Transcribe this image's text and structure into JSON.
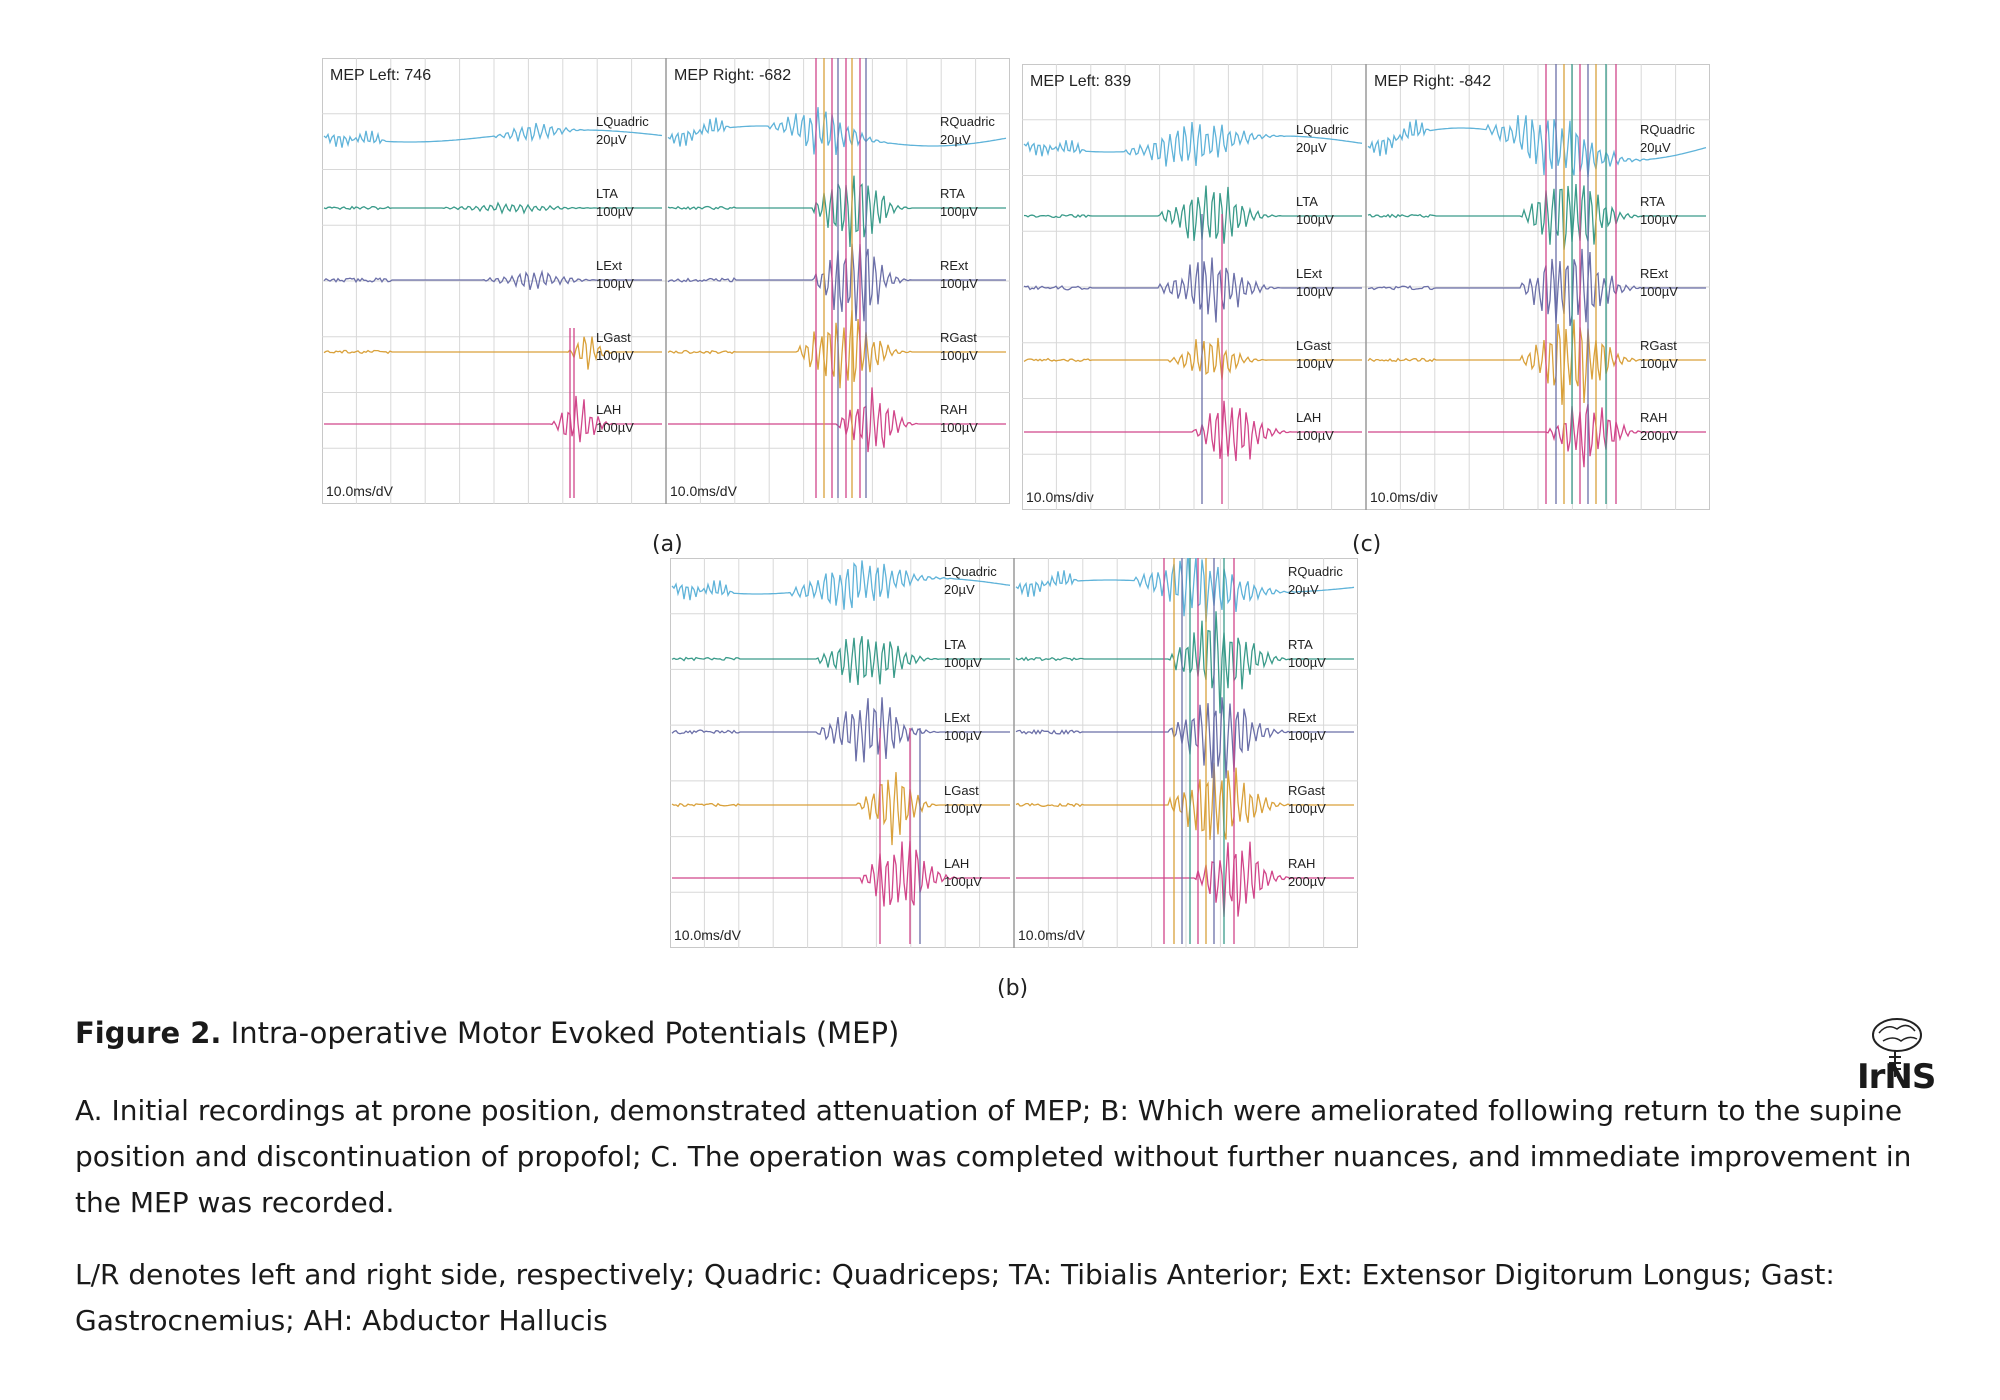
{
  "colors": {
    "grid": "#d8d8d8",
    "divider": "#9a9a9a",
    "quadric": "#5fb3d9",
    "ta": "#3a9b8a",
    "ext": "#6b6fa8",
    "gast": "#d9a13b",
    "ah": "#d1468a"
  },
  "figure": {
    "title_bold": "Figure 2.",
    "title_text": " Intra-operative Motor Evoked Potentials (MEP)",
    "caption_1": "A. Initial recordings at prone position, demonstrated attenuation of MEP; B: Which were ameliorated following return to the supine position and discontinuation of propofol; C. The operation was completed without further nuances, and immediate improvement in the MEP was recorded.",
    "caption_2": "L/R denotes left and right side, respectively; Quadric: Quadriceps; TA: Tibialis Anterior; Ext: Extensor Digitorum Longus; Gast: Gastrocnemius; AH: Abductor Hallucis"
  },
  "logo_text": "IrNS",
  "panels": [
    {
      "label": "(a)",
      "left": {
        "header": "MEP Left: 746",
        "timebase": "10.0ms/dV",
        "channels": [
          {
            "name": "LQuadric",
            "scale": "20µV"
          },
          {
            "name": "LTA",
            "scale": "100µV"
          },
          {
            "name": "LExt",
            "scale": "100µV"
          },
          {
            "name": "LGast",
            "scale": "100µV"
          },
          {
            "name": "LAH",
            "scale": "100µV"
          }
        ]
      },
      "right": {
        "header": "MEP Right: -682",
        "timebase": "10.0ms/dV",
        "channels": [
          {
            "name": "RQuadric",
            "scale": "20µV"
          },
          {
            "name": "RTA",
            "scale": "100µV"
          },
          {
            "name": "RExt",
            "scale": "100µV"
          },
          {
            "name": "RGast",
            "scale": "100µV"
          },
          {
            "name": "RAH",
            "scale": "100µV"
          }
        ]
      }
    },
    {
      "label": "(b)",
      "left": {
        "header": "",
        "timebase": "10.0ms/dV",
        "channels": [
          {
            "name": "LQuadric",
            "scale": "20µV"
          },
          {
            "name": "LTA",
            "scale": "100µV"
          },
          {
            "name": "LExt",
            "scale": "100µV"
          },
          {
            "name": "LGast",
            "scale": "100µV"
          },
          {
            "name": "LAH",
            "scale": "100µV"
          }
        ]
      },
      "right": {
        "header": "",
        "timebase": "10.0ms/dV",
        "channels": [
          {
            "name": "RQuadric",
            "scale": "20µV"
          },
          {
            "name": "RTA",
            "scale": "100µV"
          },
          {
            "name": "RExt",
            "scale": "100µV"
          },
          {
            "name": "RGast",
            "scale": "100µV"
          },
          {
            "name": "RAH",
            "scale": "200µV"
          }
        ]
      }
    },
    {
      "label": "(c)",
      "left": {
        "header": "MEP Left: 839",
        "timebase": "10.0ms/div",
        "channels": [
          {
            "name": "LQuadric",
            "scale": "20µV"
          },
          {
            "name": "LTA",
            "scale": "100µV"
          },
          {
            "name": "LExt",
            "scale": "100µV"
          },
          {
            "name": "LGast",
            "scale": "100µV"
          },
          {
            "name": "LAH",
            "scale": "100µV"
          }
        ]
      },
      "right": {
        "header": "MEP Right: -842",
        "timebase": "10.0ms/div",
        "channels": [
          {
            "name": "RQuadric",
            "scale": "20µV"
          },
          {
            "name": "RTA",
            "scale": "100µV"
          },
          {
            "name": "RExt",
            "scale": "100µV"
          },
          {
            "name": "RGast",
            "scale": "100µV"
          },
          {
            "name": "RAH",
            "scale": "200µV"
          }
        ]
      }
    }
  ]
}
